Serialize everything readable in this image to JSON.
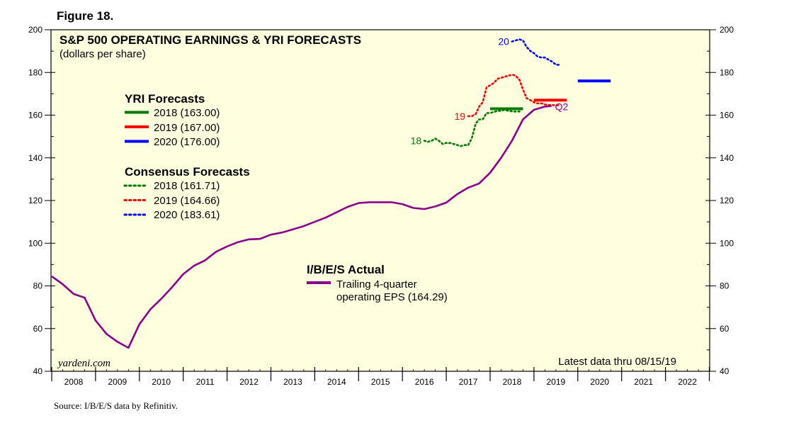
{
  "figure_label": "Figure 18.",
  "source": "Source: I/B/E/S data by Refinitiv.",
  "chart_data": {
    "type": "line",
    "title": "S&P 500 OPERATING EARNINGS & YRI FORECASTS",
    "subtitle": "(dollars per share)",
    "ylim": [
      40,
      200
    ],
    "yticks": [
      40,
      60,
      80,
      100,
      120,
      140,
      160,
      180,
      200
    ],
    "xlim": [
      2008,
      2023
    ],
    "year_labels": [
      "2008",
      "2009",
      "2010",
      "2011",
      "2012",
      "2013",
      "2014",
      "2015",
      "2016",
      "2017",
      "2018",
      "2019",
      "2020",
      "2021",
      "2022"
    ],
    "watermark": "yardeni.com",
    "latest_note": "Latest data thru 08/15/19",
    "colors": {
      "purple": "#8b008b",
      "green": "#007a00",
      "red": "#ff0000",
      "blue": "#0000ff",
      "plot_bg": "#ffffe0"
    },
    "actual": {
      "legend_title": "I/B/E/S Actual",
      "label_line1": "Trailing 4-quarter",
      "label_line2": "operating EPS (164.29)",
      "x": [
        2008.0,
        2008.25,
        2008.5,
        2008.75,
        2009.0,
        2009.25,
        2009.5,
        2009.75,
        2010.0,
        2010.25,
        2010.5,
        2010.75,
        2011.0,
        2011.25,
        2011.5,
        2011.75,
        2012.0,
        2012.25,
        2012.5,
        2012.75,
        2013.0,
        2013.25,
        2013.5,
        2013.75,
        2014.0,
        2014.25,
        2014.5,
        2014.75,
        2015.0,
        2015.25,
        2015.5,
        2015.75,
        2016.0,
        2016.25,
        2016.5,
        2016.75,
        2017.0,
        2017.25,
        2017.5,
        2017.75,
        2018.0,
        2018.25,
        2018.5,
        2018.75,
        2019.0,
        2019.25,
        2019.4
      ],
      "y": [
        84.5,
        80.8,
        76.2,
        74.5,
        63.8,
        57.5,
        53.8,
        51.0,
        62.0,
        69.0,
        74.0,
        79.5,
        85.5,
        89.5,
        92.0,
        96.0,
        98.5,
        100.5,
        101.8,
        102.0,
        104.0,
        105.0,
        106.5,
        108.0,
        110.0,
        112.0,
        114.5,
        117.0,
        118.8,
        119.2,
        119.2,
        119.2,
        118.3,
        116.5,
        116.0,
        117.2,
        119.0,
        123.0,
        126.0,
        128.0,
        133.0,
        140.0,
        148.0,
        158.0,
        162.5,
        164.0,
        164.29
      ],
      "q2_label": "Q2"
    },
    "yri_forecasts": {
      "title": "YRI Forecasts",
      "items": [
        {
          "label": "2018 (163.00)",
          "value": 163.0,
          "x_start": 2018.0,
          "x_end": 2018.75,
          "color": "#007a00"
        },
        {
          "label": "2019 (167.00)",
          "value": 167.0,
          "x_start": 2019.0,
          "x_end": 2019.75,
          "color": "#ff0000"
        },
        {
          "label": "2020 (176.00)",
          "value": 176.0,
          "x_start": 2020.0,
          "x_end": 2020.75,
          "color": "#0000ff"
        }
      ]
    },
    "consensus_forecasts": {
      "title": "Consensus Forecasts",
      "series": [
        {
          "label": "2018 (161.71)",
          "tag": "18",
          "color": "#007a00",
          "x": [
            2016.5,
            2016.58,
            2016.67,
            2016.75,
            2016.83,
            2016.92,
            2017.0,
            2017.08,
            2017.17,
            2017.25,
            2017.33,
            2017.42,
            2017.5,
            2017.58,
            2017.67,
            2017.75,
            2017.83,
            2017.92,
            2018.0,
            2018.08,
            2018.17,
            2018.25,
            2018.33,
            2018.42,
            2018.5,
            2018.58,
            2018.67
          ],
          "y": [
            148.0,
            147.5,
            148.0,
            149.0,
            148.0,
            146.5,
            147.0,
            147.0,
            146.5,
            146.0,
            145.5,
            146.0,
            146.0,
            149.0,
            156.0,
            158.0,
            158.0,
            161.0,
            161.0,
            161.5,
            162.0,
            162.0,
            162.5,
            162.0,
            161.8,
            161.7,
            161.71
          ]
        },
        {
          "label": "2019 (164.66)",
          "tag": "19",
          "color": "#ff0000",
          "x": [
            2017.5,
            2017.58,
            2017.67,
            2017.75,
            2017.83,
            2017.92,
            2018.0,
            2018.08,
            2018.17,
            2018.25,
            2018.33,
            2018.42,
            2018.5,
            2018.58,
            2018.67,
            2018.75,
            2018.83,
            2018.92,
            2019.0,
            2019.08,
            2019.17,
            2019.25,
            2019.33,
            2019.42,
            2019.5,
            2019.58
          ],
          "y": [
            159.5,
            159.5,
            160.5,
            164.0,
            166.0,
            173.0,
            174.0,
            175.0,
            177.0,
            177.5,
            178.0,
            178.5,
            179.0,
            178.5,
            176.5,
            172.0,
            168.0,
            167.0,
            166.0,
            165.5,
            165.5,
            165.0,
            164.8,
            164.7,
            164.66,
            164.66
          ]
        },
        {
          "label": "2020 (183.61)",
          "tag": "20",
          "color": "#0000ff",
          "x": [
            2018.5,
            2018.58,
            2018.67,
            2018.75,
            2018.83,
            2018.92,
            2019.0,
            2019.08,
            2019.17,
            2019.25,
            2019.33,
            2019.42,
            2019.5,
            2019.58
          ],
          "y": [
            194.5,
            195.0,
            195.5,
            195.0,
            192.0,
            190.0,
            189.0,
            187.5,
            187.0,
            187.0,
            186.0,
            185.0,
            183.61,
            183.61
          ]
        }
      ]
    }
  }
}
